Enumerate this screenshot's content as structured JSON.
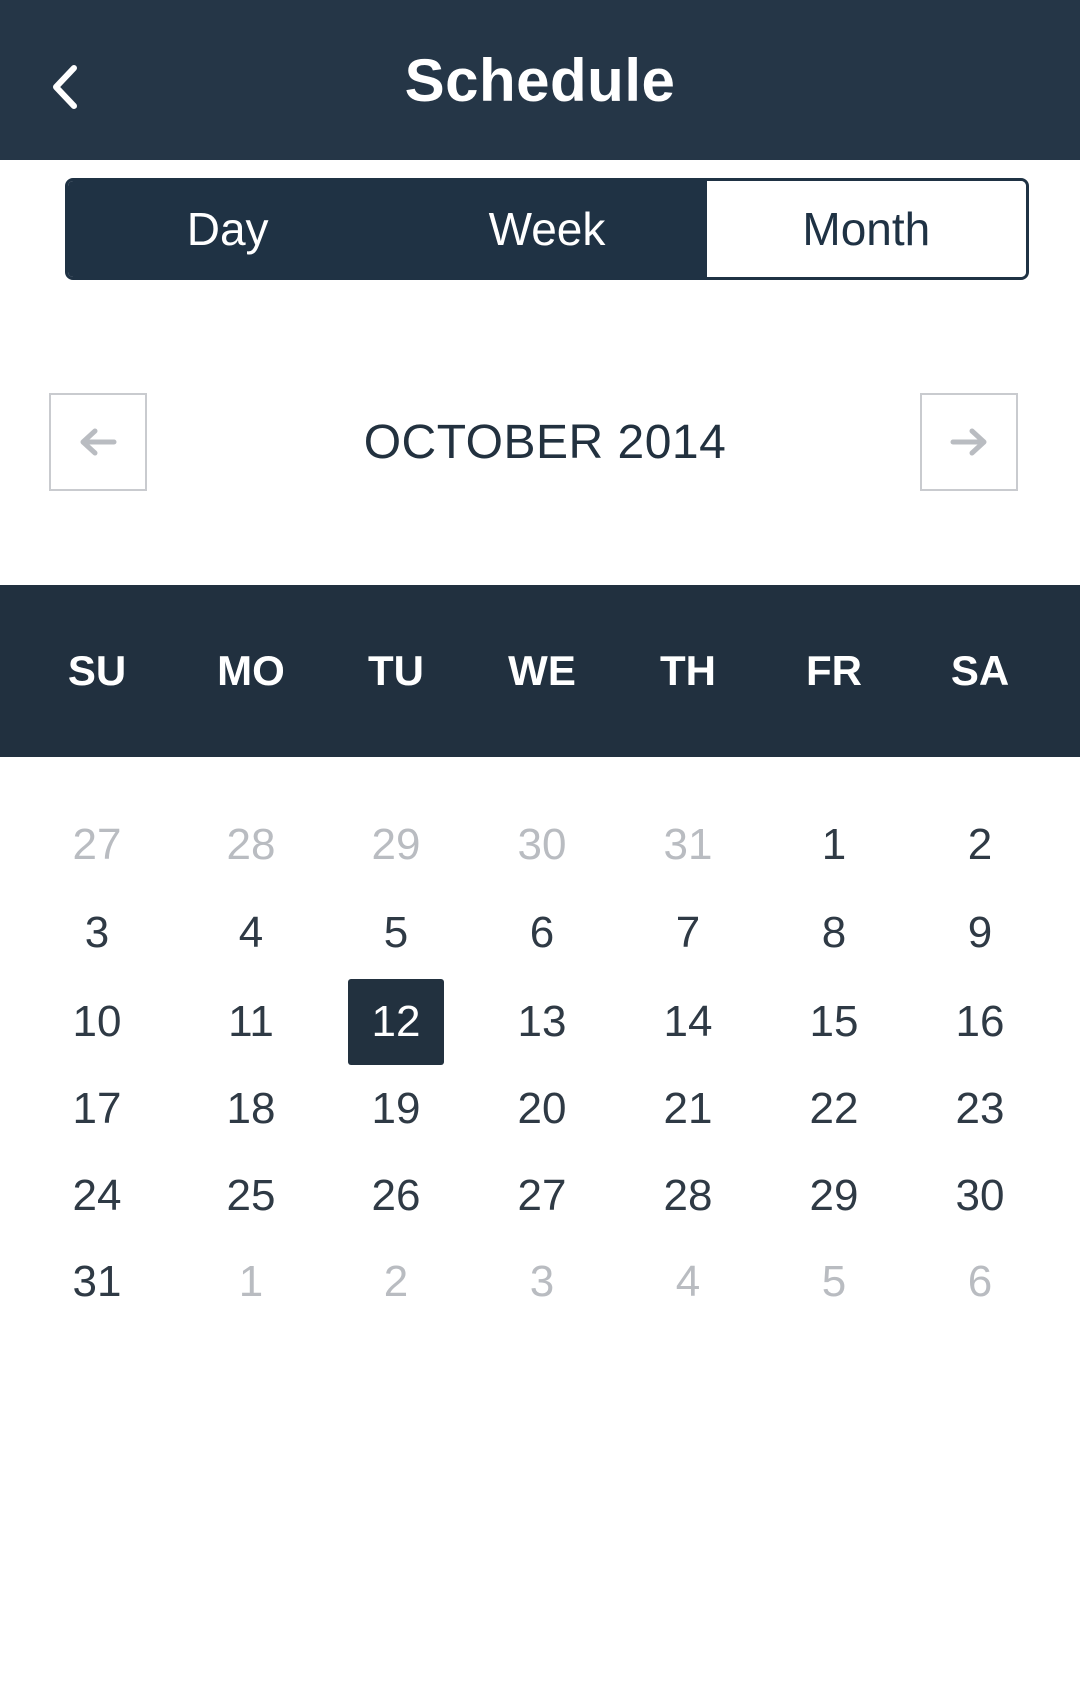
{
  "header": {
    "title": "Schedule",
    "back_icon": "chevron-left-icon"
  },
  "view_toggle": {
    "options": [
      "Day",
      "Week",
      "Month"
    ],
    "selected": "Month"
  },
  "month_nav": {
    "prev_icon": "arrow-left-icon",
    "next_icon": "arrow-right-icon",
    "label": "OCTOBER 2014"
  },
  "calendar": {
    "weekdays": [
      "SU",
      "MO",
      "TU",
      "WE",
      "TH",
      "FR",
      "SA"
    ],
    "weeks": [
      [
        "27",
        "28",
        "29",
        "30",
        "31",
        "1",
        "2"
      ],
      [
        "3",
        "4",
        "5",
        "6",
        "7",
        "8",
        "9"
      ],
      [
        "10",
        "11",
        "12",
        "13",
        "14",
        "15",
        "16"
      ],
      [
        "17",
        "18",
        "19",
        "20",
        "21",
        "22",
        "23"
      ],
      [
        "24",
        "25",
        "26",
        "27",
        "28",
        "29",
        "30"
      ],
      [
        "31",
        "1",
        "2",
        "3",
        "4",
        "5",
        "6"
      ]
    ],
    "selected_day": "12"
  },
  "colors": {
    "header_bg": "#253647",
    "accent_dark": "#1f3244",
    "muted_day": "#b9bcc1"
  }
}
